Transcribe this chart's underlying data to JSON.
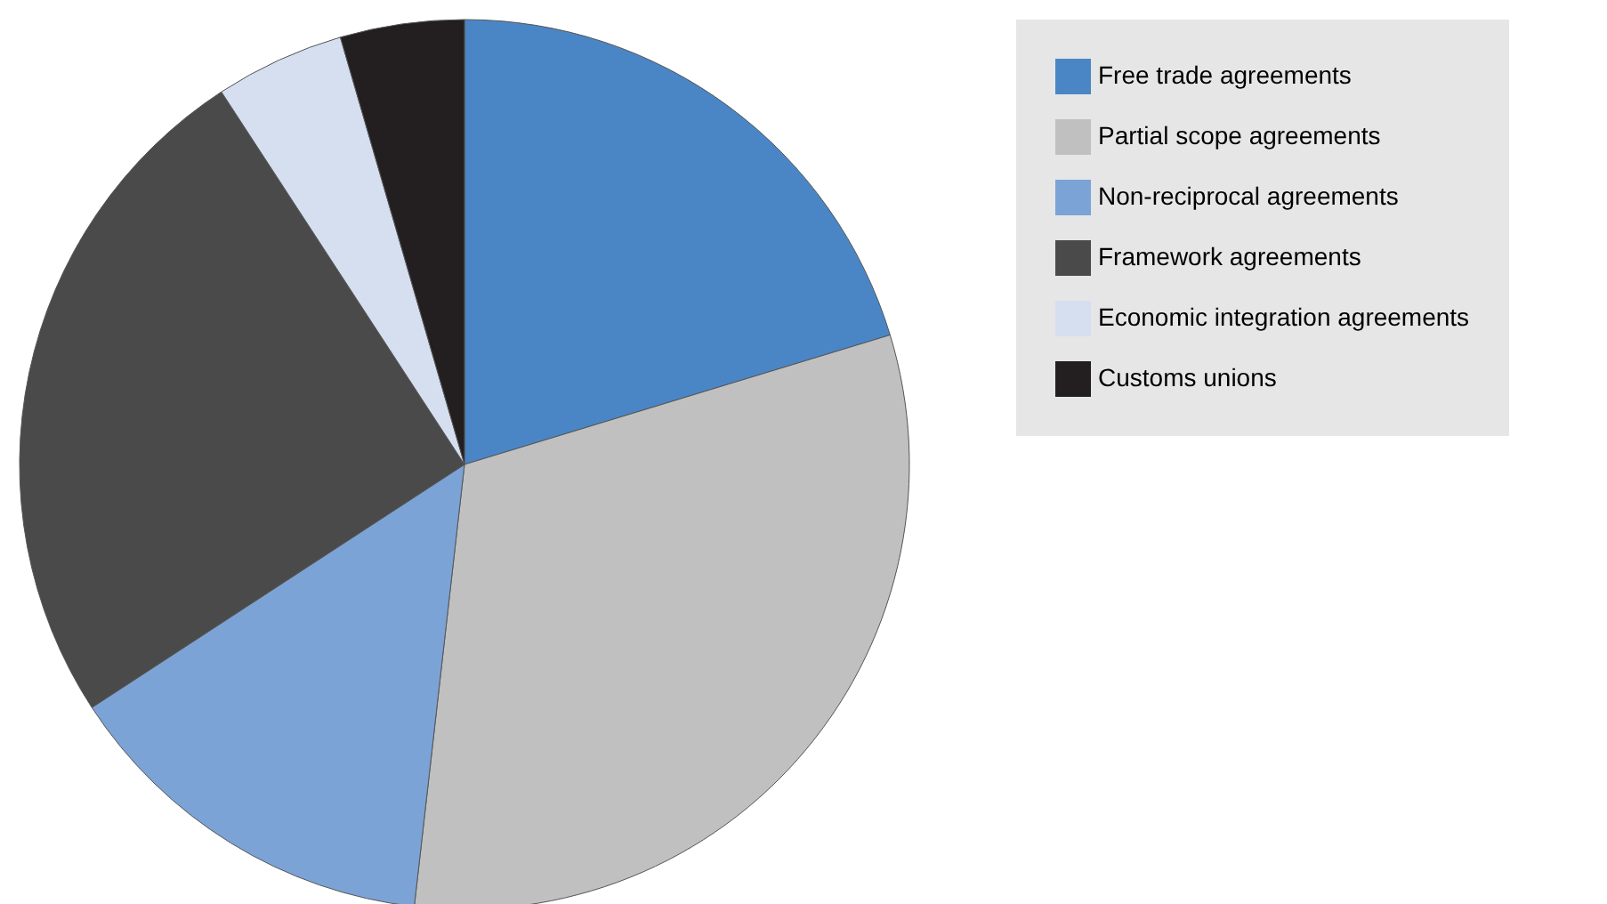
{
  "chart_data": {
    "type": "pie",
    "categories": [
      "Free trade agreements",
      "Partial scope agreements",
      "Non-reciprocal agreements",
      "Framework agreements",
      "Economic integration agreements",
      "Customs unions"
    ],
    "values": [
      20.3,
      31.5,
      14,
      25,
      4.7,
      4.5
    ],
    "colors": [
      "#4a86c6",
      "#c0c0c0",
      "#7ba3d6",
      "#4a4a4a",
      "#d5dff0",
      "#231f20"
    ],
    "legend": "right"
  }
}
